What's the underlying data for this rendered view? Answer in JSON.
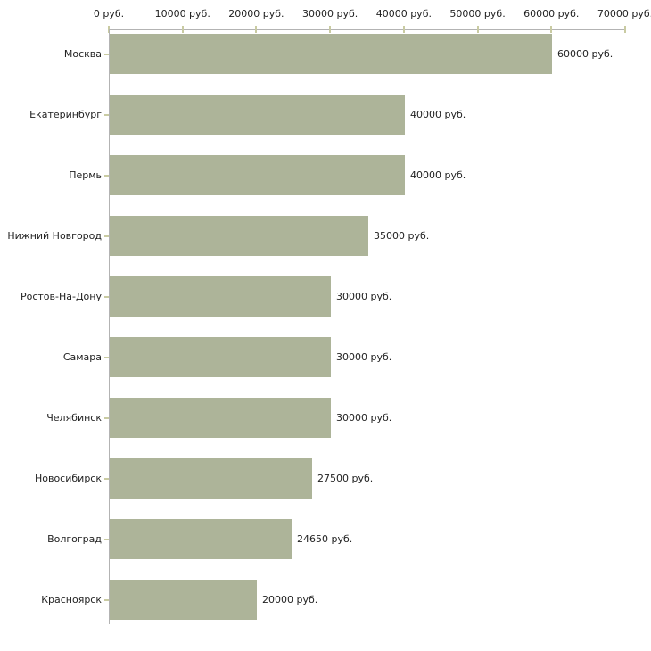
{
  "chart_data": {
    "type": "bar",
    "orientation": "horizontal",
    "title": "",
    "xlabel": "",
    "ylabel": "",
    "unit": "руб.",
    "xlim": [
      0,
      70000
    ],
    "x_tick_step": 10000,
    "x_tick_labels": [
      "0 руб.",
      "10000 руб.",
      "20000 руб.",
      "30000 руб.",
      "40000 руб.",
      "50000 руб.",
      "60000 руб.",
      "70000 руб."
    ],
    "categories": [
      "Москва",
      "Екатеринбург",
      "Пермь",
      "Нижний Новгород",
      "Ростов-На-Дону",
      "Самара",
      "Челябинск",
      "Новосибирск",
      "Волгоград",
      "Красноярск"
    ],
    "values": [
      60000,
      40000,
      40000,
      35000,
      30000,
      30000,
      30000,
      27500,
      24650,
      20000
    ],
    "value_labels": [
      "60000 руб.",
      "40000 руб.",
      "40000 руб.",
      "35000 руб.",
      "30000 руб.",
      "30000 руб.",
      "30000 руб.",
      "27500 руб.",
      "24650 руб.",
      "20000 руб."
    ],
    "grid": false,
    "legend_position": "none",
    "colors": {
      "bar": "#adb499",
      "axis_line": "#b3b3b3",
      "tick_mark": "#c9cba2",
      "text": "#222222",
      "background": "#ffffff"
    }
  }
}
